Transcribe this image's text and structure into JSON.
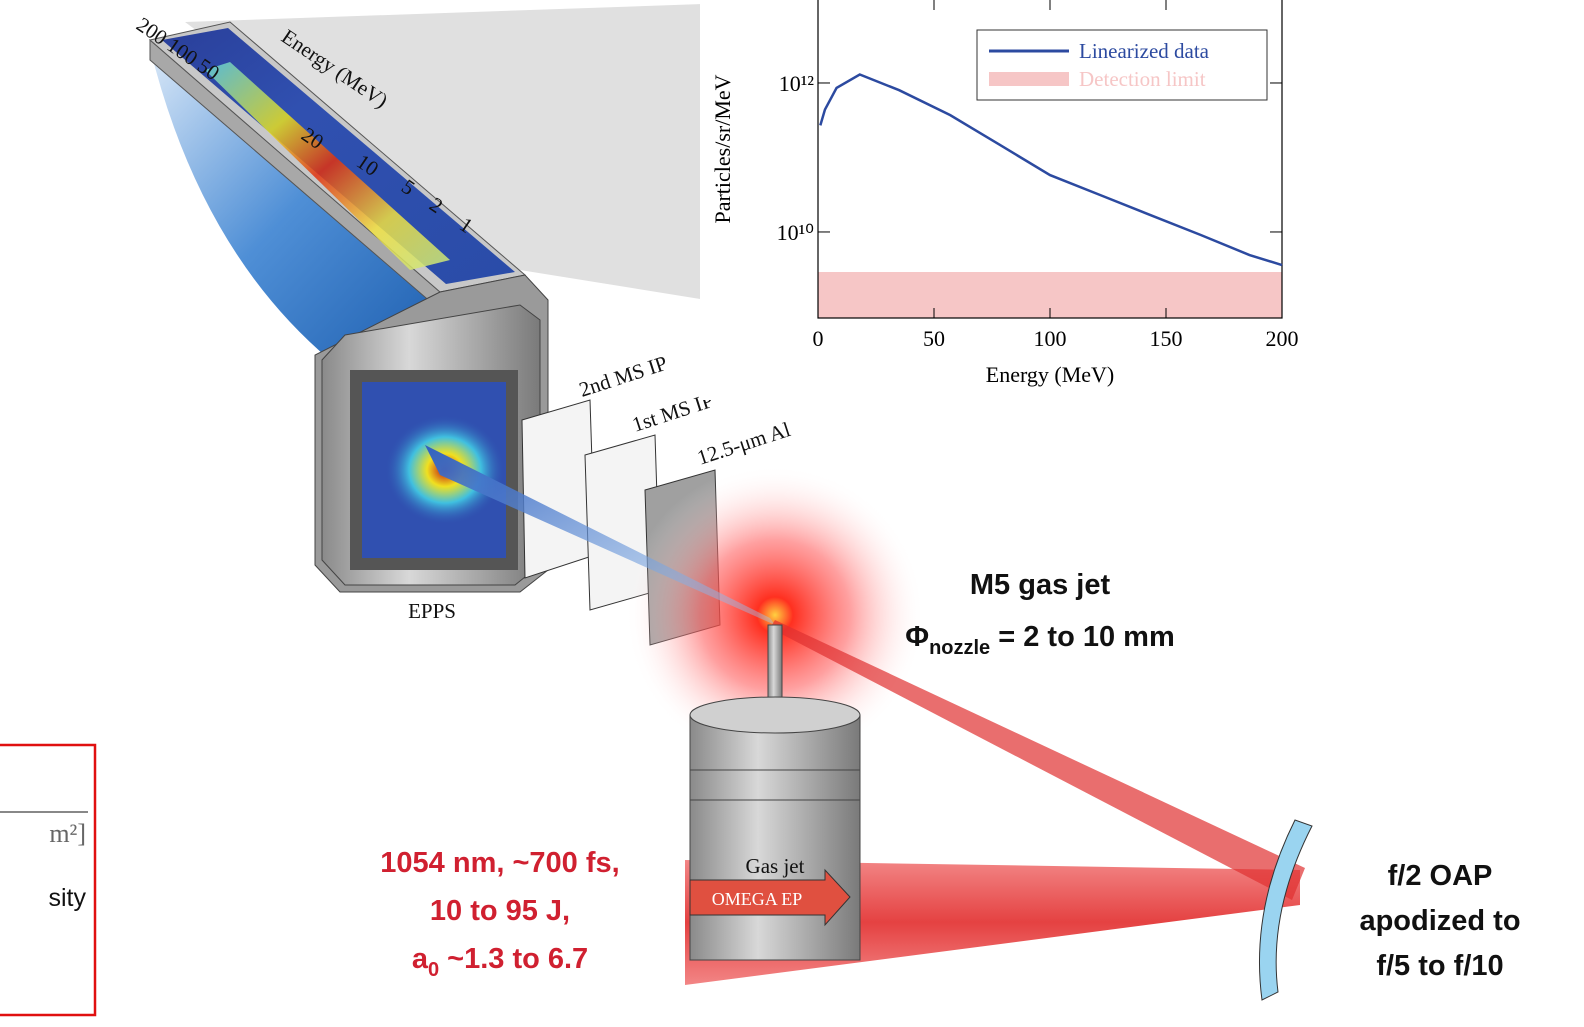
{
  "chart_data": {
    "type": "line",
    "log_y": true,
    "xlabel": "Energy (MeV)",
    "ylabel": "Particles/sr/MeV",
    "x": [
      1,
      3,
      8,
      18,
      35,
      57,
      78,
      100,
      122,
      143,
      165,
      186,
      200
    ],
    "series": [
      {
        "name": "Linearized data",
        "color": "#2c4aa0",
        "values": [
          270000000000,
          440000000000,
          860000000000,
          1300000000000,
          800000000000,
          370000000000,
          150000000000,
          58000000000,
          31000000000,
          17000000000,
          9100000000,
          4900000000,
          3600000000
        ]
      }
    ],
    "bands": [
      {
        "name": "Detection limit",
        "color": "#f6c6c6",
        "value": 2900000000
      }
    ],
    "xlim": [
      0,
      200
    ],
    "xticks": [
      0,
      50,
      100,
      150,
      200
    ],
    "ylim": [
      700000000,
      13000000000000
    ],
    "yticks": [
      {
        "value": 10000000000,
        "label": "10¹⁰"
      },
      {
        "value": 1000000000000,
        "label": "10¹²"
      }
    ],
    "legend": "upper right"
  },
  "labels": {
    "scale_high": "200 100 50",
    "scale_title": "Energy (MeV)",
    "scale_20": "20",
    "scale_10": "10",
    "scale_5": "5",
    "scale_2": "2",
    "scale_1": "1",
    "plate_2nd": "2nd MS IP",
    "plate_1st": "1st MS IP",
    "plate_al": "12.5-μm Al",
    "epps": "EPPS",
    "gas_jet": "Gas jet",
    "omega_ep": "OMEGA EP",
    "m5_title": "M5 gas jet",
    "phi": "Φ",
    "phi_sub": "nozzle",
    "phi_rest": " = 2 to 10 mm",
    "laser_1": "1054 nm, ~700 fs,",
    "laser_2": "10 to 95 J,",
    "laser_a": "a",
    "laser_a_sub": "0",
    "laser_3": " ~1.3 to 6.7",
    "oap_1": "f/2 OAP",
    "oap_2": "apodized to",
    "oap_3": "f/5 to f/10",
    "box_1": "m²]",
    "box_2": "sity"
  }
}
